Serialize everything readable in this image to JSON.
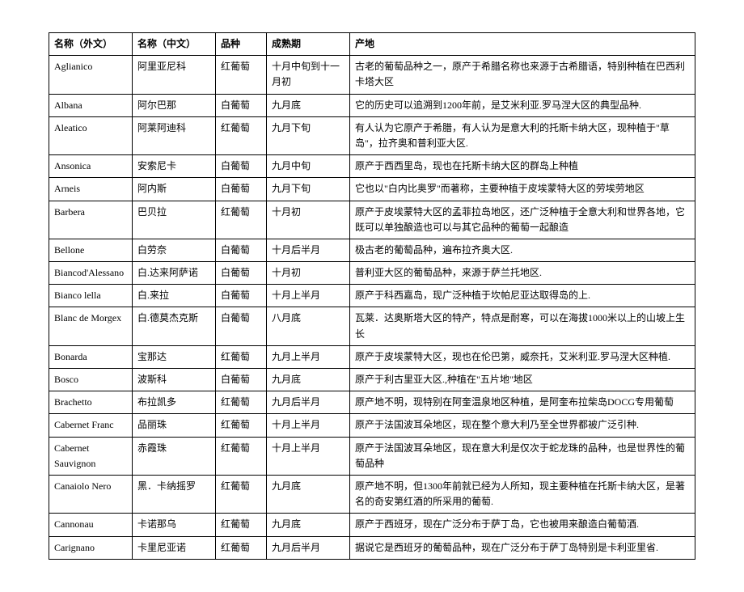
{
  "table": {
    "columns": [
      "名称（外文）",
      "名称（中文）",
      "品种",
      "成熟期",
      "产地"
    ],
    "rows": [
      [
        "Aglianico",
        "阿里亚尼科",
        "红葡萄",
        "十月中旬到十一月初",
        "古老的葡萄品种之一，原产于希腊名称也来源于古希腊语，特别种植在巴西利卡塔大区"
      ],
      [
        "Albana",
        "阿尔巴那",
        "白葡萄",
        "九月底",
        "它的历史可以追溯到1200年前，是艾米利亚.罗马涅大区的典型品种."
      ],
      [
        "Aleatico",
        "阿莱阿迪科",
        "红葡萄",
        "九月下旬",
        "有人认为它原产于希腊，有人认为是意大利的托斯卡纳大区，现种植于\"草岛\"，拉齐奥和普利亚大区."
      ],
      [
        "Ansonica",
        "安索尼卡",
        "白葡萄",
        "九月中旬",
        "原产于西西里岛，现也在托斯卡纳大区的群岛上种植"
      ],
      [
        "Arneis",
        "阿内斯",
        "白葡萄",
        "九月下旬",
        "它也以\"白内比奥罗\"而著称，主要种植于皮埃蒙特大区的劳埃劳地区"
      ],
      [
        "Barbera",
        "巴贝拉",
        "红葡萄",
        "十月初",
        "原产于皮埃蒙特大区的孟菲拉岛地区，还广泛种植于全意大利和世界各地，它既可以单独酿造也可以与其它品种的葡萄一起酿造"
      ],
      [
        "Bellone",
        "白劳奈",
        "白葡萄",
        "十月后半月",
        "极古老的葡萄品种，遍布拉齐奥大区."
      ],
      [
        "Biancod'Alessano",
        "白.达来阿萨诺",
        "白葡萄",
        "十月初",
        "普利亚大区的葡萄品种，来源于萨兰托地区."
      ],
      [
        "Bianco lella",
        "白.来拉",
        "白葡萄",
        "十月上半月",
        "原产于科西嘉岛，现广泛种植于坎帕尼亚达取得岛的上."
      ],
      [
        "Blanc de Morgex",
        "白.德莫杰克斯",
        "白葡萄",
        "八月底",
        "瓦莱．达奥斯塔大区的特产，特点是耐寒，可以在海拔1000米以上的山坡上生长"
      ],
      [
        "Bonarda",
        "宝那达",
        "红葡萄",
        "九月上半月",
        "原产于皮埃蒙特大区，现也在伦巴第，威奈托，艾米利亚.罗马涅大区种植."
      ],
      [
        "Bosco",
        "波斯科",
        "白葡萄",
        "九月底",
        "原产于利古里亚大区.,种植在\"五片地\"地区"
      ],
      [
        "Brachetto",
        "布拉凯多",
        "红葡萄",
        "九月后半月",
        "原产地不明，现特别在阿奎温泉地区种植，是阿奎布拉柴岛DOCG专用葡萄"
      ],
      [
        "Cabernet Franc",
        "品丽珠",
        "红葡萄",
        "十月上半月",
        "原产于法国波耳朵地区，现在整个意大利乃至全世界都被广泛引种."
      ],
      [
        "Cabernet Sauvignon",
        "赤霞珠",
        "红葡萄",
        "十月上半月",
        "原产于法国波耳朵地区，现在意大利是仅次于蛇龙珠的品种，也是世界性的葡萄品种"
      ],
      [
        "Canaiolo Nero",
        "黑．卡纳摇罗",
        "红葡萄",
        "九月底",
        "原产地不明，但1300年前就已经为人所知，现主要种植在托斯卡纳大区，是著名的奇安第红酒的所采用的葡萄."
      ],
      [
        "Cannonau",
        "卡诺那乌",
        "红葡萄",
        "九月底",
        "原产于西班牙，现在广泛分布于萨丁岛，它也被用来酿造白葡萄酒."
      ],
      [
        "Carignano",
        "卡里尼亚诺",
        "红葡萄",
        "九月后半月",
        "据说它是西班牙的葡萄品种，现在广泛分布于萨丁岛特别是卡利亚里省."
      ]
    ]
  }
}
